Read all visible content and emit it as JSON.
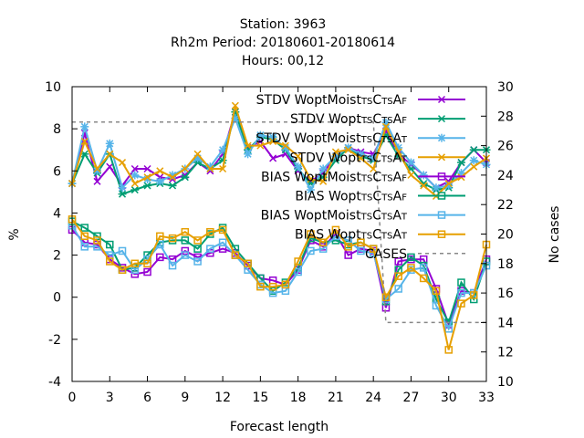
{
  "chart_data": {
    "type": "line",
    "title_lines": [
      "Station:     3963",
      "Rh2m   Period: 20180601-20180614",
      "Hours:  00,12"
    ],
    "xlabel": "Forecast length",
    "ylabel": "%",
    "y2label": "No cases",
    "xlim": [
      0,
      33
    ],
    "ylim": [
      -4,
      10
    ],
    "y2lim": [
      10,
      30
    ],
    "x_ticks": [
      0,
      3,
      6,
      9,
      12,
      15,
      18,
      21,
      24,
      27,
      30,
      33
    ],
    "y_ticks": [
      -4,
      -2,
      0,
      2,
      4,
      6,
      8,
      10
    ],
    "y2_ticks": [
      10,
      12,
      14,
      16,
      18,
      20,
      22,
      24,
      26,
      28,
      30
    ],
    "grid": false,
    "legend_position": "top-right",
    "x": [
      0,
      1,
      2,
      3,
      4,
      5,
      6,
      7,
      8,
      9,
      10,
      11,
      12,
      13,
      14,
      15,
      16,
      17,
      18,
      19,
      20,
      21,
      22,
      23,
      24,
      25,
      26,
      27,
      28,
      29,
      30,
      31,
      32,
      33
    ],
    "series": [
      {
        "name": "STDV WoptMoist_TS C_TS A_F",
        "legend_parts": [
          [
            "STDV WoptMoist",
            ""
          ],
          [
            "TS",
            "sub"
          ],
          [
            "C",
            ""
          ],
          [
            "TS",
            "sub"
          ],
          [
            "A",
            ""
          ],
          [
            "F",
            "sub"
          ]
        ],
        "color": "#9400d3",
        "marker": "x",
        "axis": "y1",
        "values": [
          5.4,
          7.8,
          5.5,
          6.2,
          5.3,
          6.1,
          6.1,
          5.7,
          5.6,
          5.8,
          6.4,
          6.0,
          6.8,
          8.8,
          7.1,
          7.4,
          6.6,
          6.8,
          6.0,
          5.5,
          5.9,
          6.7,
          7.1,
          6.9,
          6.8,
          7.9,
          6.8,
          6.3,
          5.8,
          5.2,
          5.5,
          6.4,
          7.0,
          6.4
        ]
      },
      {
        "name": "STDV Wopt_TS C_TS A_F",
        "legend_parts": [
          [
            "STDV Wopt",
            ""
          ],
          [
            "TS",
            "sub"
          ],
          [
            "C",
            ""
          ],
          [
            "TS",
            "sub"
          ],
          [
            "A",
            ""
          ],
          [
            "F",
            "sub"
          ]
        ],
        "color": "#009e73",
        "marker": "asterisk",
        "axis": "y1",
        "values": [
          5.4,
          6.8,
          5.9,
          6.8,
          4.9,
          5.1,
          5.3,
          5.4,
          5.3,
          5.7,
          6.4,
          6.1,
          6.5,
          8.8,
          7.0,
          7.6,
          7.5,
          7.0,
          6.1,
          5.4,
          5.7,
          6.5,
          7.1,
          6.7,
          6.5,
          7.7,
          6.7,
          6.1,
          5.4,
          5.1,
          5.2,
          6.4,
          7.0,
          7.0
        ]
      },
      {
        "name": "STDV WoptMoist_TS C_TS A_T",
        "legend_parts": [
          [
            "STDV WoptMoist",
            ""
          ],
          [
            "TS",
            "sub"
          ],
          [
            "C",
            ""
          ],
          [
            "TS",
            "sub"
          ],
          [
            "A",
            ""
          ],
          [
            "T",
            "sub"
          ]
        ],
        "color": "#56b4e9",
        "marker": "star",
        "axis": "y1",
        "values": [
          5.4,
          8.1,
          6.0,
          7.3,
          5.2,
          5.8,
          5.6,
          5.5,
          5.8,
          6.1,
          6.6,
          6.2,
          7.0,
          8.5,
          6.8,
          7.7,
          7.6,
          7.1,
          6.2,
          5.1,
          6.1,
          6.7,
          7.1,
          6.8,
          6.6,
          8.3,
          7.1,
          6.4,
          5.8,
          5.2,
          5.3,
          5.9,
          6.5,
          6.3
        ]
      },
      {
        "name": "STDV Wopt_TS C_TS A_T",
        "legend_parts": [
          [
            "STDV Wopt",
            ""
          ],
          [
            "TS",
            "sub"
          ],
          [
            "C",
            ""
          ],
          [
            "TS",
            "sub"
          ],
          [
            "A",
            ""
          ],
          [
            "T",
            "sub"
          ]
        ],
        "color": "#e69f00",
        "marker": "x",
        "axis": "y1",
        "values": [
          5.4,
          7.4,
          6.1,
          6.8,
          6.4,
          5.4,
          5.7,
          6.0,
          5.7,
          6.1,
          6.8,
          6.1,
          6.1,
          9.1,
          7.2,
          7.2,
          7.4,
          7.2,
          6.7,
          5.6,
          5.5,
          6.9,
          7.0,
          6.6,
          6.1,
          8.1,
          6.9,
          5.8,
          5.3,
          4.8,
          5.4,
          5.7,
          6.2,
          6.6
        ]
      },
      {
        "name": "BIAS WoptMoist_TS C_TS A_F",
        "legend_parts": [
          [
            "BIAS WoptMoist",
            ""
          ],
          [
            "TS",
            "sub"
          ],
          [
            "C",
            ""
          ],
          [
            "TS",
            "sub"
          ],
          [
            "A",
            ""
          ],
          [
            "F",
            "sub"
          ]
        ],
        "color": "#9400d3",
        "marker": "square",
        "axis": "y1",
        "values": [
          3.2,
          2.6,
          2.5,
          1.8,
          1.4,
          1.1,
          1.2,
          1.9,
          1.8,
          2.2,
          1.9,
          2.1,
          2.3,
          2.1,
          1.5,
          0.9,
          0.8,
          0.6,
          1.3,
          2.7,
          2.4,
          3.0,
          2.0,
          2.3,
          2.2,
          -0.5,
          1.7,
          1.8,
          1.8,
          0.4,
          -1.3,
          0.3,
          0.2,
          1.8
        ]
      },
      {
        "name": "BIAS Wopt_TS C_TS A_F",
        "legend_parts": [
          [
            "BIAS Wopt",
            ""
          ],
          [
            "TS",
            "sub"
          ],
          [
            "C",
            ""
          ],
          [
            "TS",
            "sub"
          ],
          [
            "A",
            ""
          ],
          [
            "F",
            "sub"
          ]
        ],
        "color": "#009e73",
        "marker": "square",
        "axis": "y1",
        "values": [
          3.6,
          3.3,
          2.9,
          2.5,
          1.3,
          1.4,
          2.0,
          2.6,
          2.7,
          2.7,
          2.3,
          3.0,
          3.3,
          2.3,
          1.6,
          0.9,
          0.3,
          0.7,
          1.4,
          2.8,
          2.6,
          2.7,
          2.5,
          2.6,
          2.3,
          -0.2,
          1.3,
          1.9,
          1.5,
          -0.1,
          -1.2,
          0.7,
          -0.1,
          1.7
        ]
      },
      {
        "name": "BIAS WoptMoist_TS C_TS A_T",
        "legend_parts": [
          [
            "BIAS WoptMoist",
            ""
          ],
          [
            "TS",
            "sub"
          ],
          [
            "C",
            ""
          ],
          [
            "TS",
            "sub"
          ],
          [
            "A",
            ""
          ],
          [
            "T",
            "sub"
          ]
        ],
        "color": "#56b4e9",
        "marker": "square",
        "axis": "y1",
        "values": [
          3.4,
          2.4,
          2.4,
          2.0,
          2.2,
          1.3,
          1.8,
          2.5,
          1.5,
          2.0,
          1.7,
          2.3,
          2.6,
          2.0,
          1.3,
          0.6,
          0.2,
          0.3,
          1.2,
          2.2,
          2.3,
          2.9,
          2.7,
          2.2,
          2.1,
          -0.1,
          0.4,
          1.3,
          1.4,
          -0.4,
          -1.5,
          0.2,
          0.2,
          1.5
        ]
      },
      {
        "name": "BIAS Wopt_TS C_TS A_T",
        "legend_parts": [
          [
            "BIAS Wopt",
            ""
          ],
          [
            "TS",
            "sub"
          ],
          [
            "C",
            ""
          ],
          [
            "TS",
            "sub"
          ],
          [
            "A",
            ""
          ],
          [
            "T",
            "sub"
          ]
        ],
        "color": "#e69f00",
        "marker": "square",
        "axis": "y1",
        "values": [
          3.7,
          2.9,
          2.7,
          1.7,
          1.3,
          1.6,
          1.6,
          2.9,
          2.8,
          3.1,
          2.7,
          3.1,
          3.2,
          2.0,
          1.6,
          0.5,
          0.5,
          0.6,
          1.7,
          3.0,
          2.6,
          3.2,
          2.4,
          2.6,
          2.3,
          0.0,
          1.0,
          1.4,
          0.9,
          0.3,
          -2.5,
          -0.3,
          0.1,
          2.5
        ]
      },
      {
        "name": "CASES",
        "legend_parts": [
          [
            "CASES",
            ""
          ]
        ],
        "color": "#888888",
        "marker": "dashed",
        "axis": "y2",
        "x": [
          0,
          1,
          2,
          3,
          4,
          5,
          6,
          7,
          8,
          9,
          10,
          11,
          12,
          13,
          14,
          15,
          16,
          17,
          18,
          19,
          20,
          21,
          22,
          23,
          24,
          25,
          26,
          27,
          28,
          29,
          30,
          31,
          32,
          33
        ],
        "values": [
          27.6,
          27.6,
          27.6,
          27.6,
          27.6,
          27.6,
          27.6,
          27.6,
          27.6,
          27.6,
          27.6,
          27.6,
          27.6,
          27.6,
          27.6,
          27.6,
          27.6,
          27.6,
          27.6,
          27.6,
          27.6,
          27.6,
          27.6,
          27.6,
          27.6,
          14.0,
          14.0,
          14.0,
          14.0,
          14.0,
          14.0,
          14.0,
          14.0,
          14.0
        ]
      }
    ]
  }
}
